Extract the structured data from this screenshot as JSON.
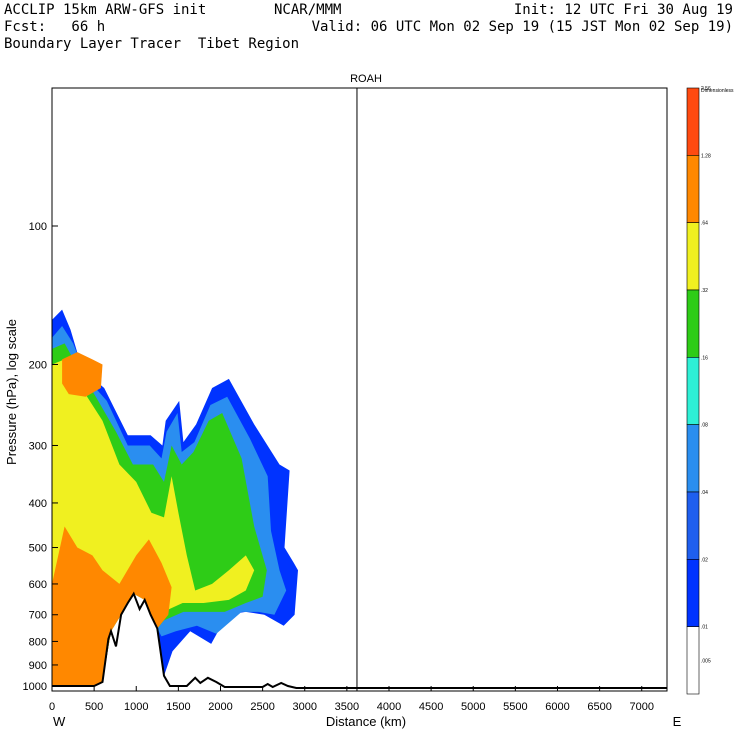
{
  "header": {
    "left1": "ACCLIP 15km ARW-GFS init",
    "left2": "Fcst:   66 h",
    "left3": "Boundary Layer Tracer  Tibet Region",
    "center": "NCAR/MMM",
    "right1": "Init: 12 UTC Fri 30 Aug 19",
    "right2": "Valid: 06 UTC Mon 02 Sep 19 (15 JST Mon 02 Sep 19)"
  },
  "colors": {
    "levels": [
      "#ffffff",
      "#0033ff",
      "#1f5fef",
      "#2a8ef0",
      "#2ef0d6",
      "#2ecc17",
      "#f0f020",
      "#ff8800",
      "#ff4a10"
    ]
  },
  "chart_data": {
    "type": "cross-section contour",
    "title": "ROAH",
    "xlabel": "Distance (km)",
    "ylabel": "Pressure (hPa), log scale",
    "x_range": [
      0,
      7300
    ],
    "y_range_hPa": [
      1050,
      50
    ],
    "y_scale": "log",
    "x_ticks": [
      0,
      500,
      1000,
      1500,
      2000,
      2500,
      3000,
      3500,
      4000,
      4500,
      5000,
      5500,
      6000,
      6500,
      7000
    ],
    "y_ticks": [
      100,
      200,
      300,
      400,
      500,
      600,
      700,
      800,
      900,
      1000
    ],
    "x_end_labels": {
      "left": "W",
      "right": "E"
    },
    "marker_line_x_km": 3620,
    "colorbar": {
      "title": "Dimensionless",
      "ticks": [
        ".005",
        ".01",
        ".02",
        ".04",
        ".08",
        ".16",
        ".32",
        ".64",
        "1.28",
        "2.56"
      ]
    },
    "terrain_km_hPa": [
      [
        0,
        1000
      ],
      [
        500,
        1000
      ],
      [
        600,
        980
      ],
      [
        670,
        790
      ],
      [
        700,
        760
      ],
      [
        760,
        820
      ],
      [
        820,
        700
      ],
      [
        900,
        660
      ],
      [
        970,
        630
      ],
      [
        1040,
        680
      ],
      [
        1100,
        650
      ],
      [
        1170,
        700
      ],
      [
        1250,
        750
      ],
      [
        1330,
        950
      ],
      [
        1400,
        1000
      ],
      [
        1600,
        1000
      ],
      [
        1700,
        960
      ],
      [
        1760,
        985
      ],
      [
        1850,
        960
      ],
      [
        1950,
        980
      ],
      [
        2050,
        1005
      ],
      [
        2500,
        1005
      ],
      [
        2560,
        990
      ],
      [
        2620,
        1005
      ],
      [
        2720,
        985
      ],
      [
        2800,
        1000
      ],
      [
        2900,
        1010
      ],
      [
        7300,
        1010
      ]
    ],
    "tracer_regions": [
      {
        "level": 1,
        "polygon": [
          [
            0,
            1000
          ],
          [
            0,
            160
          ],
          [
            120,
            152
          ],
          [
            220,
            168
          ],
          [
            360,
            205
          ],
          [
            620,
            225
          ],
          [
            900,
            285
          ],
          [
            1170,
            285
          ],
          [
            1310,
            300
          ],
          [
            1350,
            265
          ],
          [
            1510,
            240
          ],
          [
            1560,
            295
          ],
          [
            1710,
            270
          ],
          [
            1900,
            225
          ],
          [
            2100,
            215
          ],
          [
            2400,
            270
          ],
          [
            2700,
            330
          ],
          [
            2820,
            340
          ],
          [
            2760,
            500
          ],
          [
            2870,
            540
          ],
          [
            2920,
            560
          ],
          [
            2880,
            700
          ],
          [
            2750,
            740
          ],
          [
            2520,
            700
          ],
          [
            2300,
            690
          ],
          [
            2080,
            700
          ],
          [
            1890,
            810
          ],
          [
            1640,
            760
          ],
          [
            1430,
            840
          ],
          [
            1330,
            950
          ],
          [
            1250,
            750
          ],
          [
            1100,
            650
          ],
          [
            970,
            630
          ],
          [
            900,
            660
          ],
          [
            820,
            700
          ],
          [
            700,
            760
          ],
          [
            600,
            980
          ],
          [
            500,
            1000
          ]
        ]
      },
      {
        "level": 3,
        "polygon": [
          [
            0,
            1000
          ],
          [
            0,
            175
          ],
          [
            120,
            165
          ],
          [
            250,
            180
          ],
          [
            420,
            215
          ],
          [
            650,
            240
          ],
          [
            900,
            300
          ],
          [
            1160,
            300
          ],
          [
            1300,
            320
          ],
          [
            1360,
            280
          ],
          [
            1490,
            255
          ],
          [
            1540,
            310
          ],
          [
            1690,
            295
          ],
          [
            1880,
            245
          ],
          [
            2080,
            235
          ],
          [
            2350,
            290
          ],
          [
            2560,
            350
          ],
          [
            2600,
            460
          ],
          [
            2700,
            560
          ],
          [
            2780,
            620
          ],
          [
            2640,
            700
          ],
          [
            2450,
            690
          ],
          [
            2250,
            690
          ],
          [
            1950,
            770
          ],
          [
            1720,
            740
          ],
          [
            1470,
            760
          ],
          [
            1300,
            780
          ],
          [
            1250,
            750
          ],
          [
            1100,
            650
          ],
          [
            970,
            630
          ],
          [
            900,
            660
          ],
          [
            820,
            700
          ],
          [
            700,
            760
          ],
          [
            600,
            980
          ],
          [
            500,
            1000
          ]
        ]
      },
      {
        "level": 5,
        "polygon": [
          [
            0,
            1000
          ],
          [
            0,
            185
          ],
          [
            150,
            180
          ],
          [
            320,
            205
          ],
          [
            520,
            235
          ],
          [
            760,
            280
          ],
          [
            960,
            330
          ],
          [
            1200,
            330
          ],
          [
            1330,
            360
          ],
          [
            1420,
            300
          ],
          [
            1540,
            330
          ],
          [
            1680,
            310
          ],
          [
            1860,
            265
          ],
          [
            2020,
            255
          ],
          [
            2250,
            320
          ],
          [
            2400,
            450
          ],
          [
            2550,
            560
          ],
          [
            2500,
            640
          ],
          [
            2300,
            660
          ],
          [
            2050,
            690
          ],
          [
            1800,
            690
          ],
          [
            1560,
            690
          ],
          [
            1330,
            720
          ],
          [
            1250,
            750
          ],
          [
            1100,
            650
          ],
          [
            970,
            630
          ],
          [
            900,
            660
          ],
          [
            820,
            700
          ],
          [
            700,
            760
          ],
          [
            600,
            980
          ],
          [
            500,
            1000
          ]
        ]
      },
      {
        "level": 6,
        "polygon": [
          [
            0,
            1000
          ],
          [
            0,
            200
          ],
          [
            150,
            195
          ],
          [
            350,
            225
          ],
          [
            600,
            265
          ],
          [
            800,
            330
          ],
          [
            1000,
            360
          ],
          [
            1180,
            420
          ],
          [
            1330,
            430
          ],
          [
            1420,
            350
          ],
          [
            1500,
            420
          ],
          [
            1600,
            520
          ],
          [
            1700,
            620
          ],
          [
            1900,
            600
          ],
          [
            2100,
            560
          ],
          [
            2300,
            520
          ],
          [
            2400,
            560
          ],
          [
            2300,
            620
          ],
          [
            2100,
            650
          ],
          [
            1800,
            660
          ],
          [
            1550,
            660
          ],
          [
            1320,
            690
          ],
          [
            1250,
            750
          ],
          [
            1100,
            650
          ],
          [
            970,
            630
          ],
          [
            900,
            660
          ],
          [
            820,
            700
          ],
          [
            700,
            760
          ],
          [
            600,
            980
          ],
          [
            500,
            1000
          ]
        ]
      },
      {
        "level": 7,
        "polygon": [
          [
            0,
            1000
          ],
          [
            0,
            600
          ],
          [
            150,
            450
          ],
          [
            300,
            500
          ],
          [
            480,
            520
          ],
          [
            600,
            560
          ],
          [
            800,
            600
          ],
          [
            1000,
            520
          ],
          [
            1150,
            480
          ],
          [
            1300,
            540
          ],
          [
            1420,
            610
          ],
          [
            1380,
            700
          ],
          [
            1250,
            750
          ],
          [
            1100,
            650
          ],
          [
            970,
            630
          ],
          [
            900,
            660
          ],
          [
            820,
            700
          ],
          [
            700,
            760
          ],
          [
            600,
            980
          ],
          [
            500,
            1000
          ]
        ]
      },
      {
        "level": 7,
        "polygon": [
          [
            120,
            195
          ],
          [
            300,
            188
          ],
          [
            480,
            195
          ],
          [
            600,
            200
          ],
          [
            580,
            225
          ],
          [
            400,
            235
          ],
          [
            200,
            232
          ],
          [
            120,
            220
          ]
        ]
      }
    ]
  }
}
